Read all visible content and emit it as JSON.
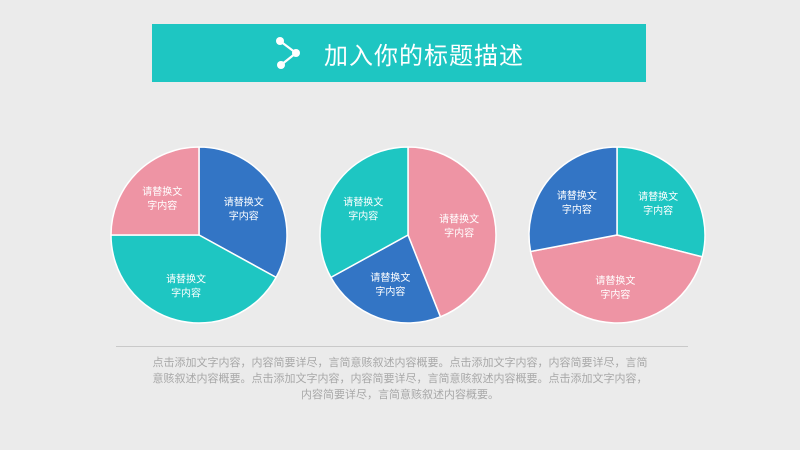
{
  "header": {
    "title": "加入你的标题描述",
    "icon": "share-node-icon"
  },
  "colors": {
    "teal": "#1ec6c2",
    "pink": "#ee94a4",
    "blue": "#3375c5",
    "background": "#ebebeb"
  },
  "chart_data": [
    {
      "type": "pie",
      "slices": [
        {
          "label": "请替换文字内容",
          "value": 33,
          "color": "#3375c5"
        },
        {
          "label": "请替换文字内容",
          "value": 42,
          "color": "#1ec6c2"
        },
        {
          "label": "请替换文字内容",
          "value": 25,
          "color": "#ee94a4"
        }
      ]
    },
    {
      "type": "pie",
      "slices": [
        {
          "label": "请替换文字内容",
          "value": 44,
          "color": "#ee94a4"
        },
        {
          "label": "请替换文字内容",
          "value": 23,
          "color": "#3375c5"
        },
        {
          "label": "请替换文字内容",
          "value": 33,
          "color": "#1ec6c2"
        }
      ]
    },
    {
      "type": "pie",
      "slices": [
        {
          "label": "请替换文字内容",
          "value": 29,
          "color": "#1ec6c2"
        },
        {
          "label": "请替换文字内容",
          "value": 43,
          "color": "#ee94a4"
        },
        {
          "label": "请替换文字内容",
          "value": 28,
          "color": "#3375c5"
        }
      ]
    }
  ],
  "footer": {
    "text": "点击添加文字内容，内容简要详尽，言简意赅叙述内容概要。点击添加文字内容，内容简要详尽，言简意赅叙述内容概要。点击添加文字内容，内容简要详尽，言简意赅叙述内容概要。点击添加文字内容，内容简要详尽，言简意赅叙述内容概要。"
  }
}
